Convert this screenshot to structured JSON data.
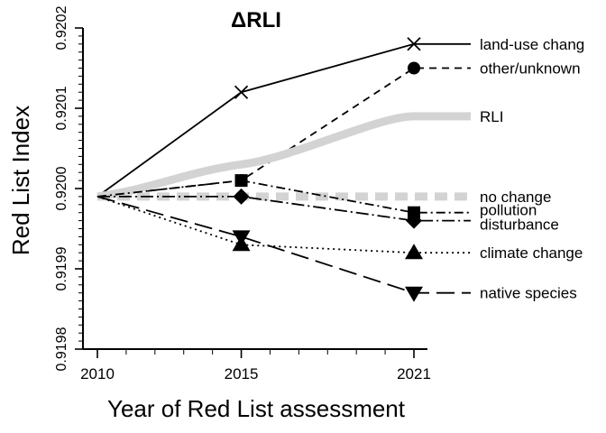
{
  "chart_data": {
    "type": "line",
    "title": "ΔRLI",
    "xlabel": "Year of Red List assessment",
    "ylabel": "Red List Index",
    "x": [
      2010,
      2015,
      2021
    ],
    "xlim": [
      2009.5,
      2022.5
    ],
    "ylim": [
      0.9198,
      0.9202
    ],
    "yticks": [
      0.9198,
      0.9199,
      0.92,
      0.9201,
      0.9202
    ],
    "yticklabels": [
      "0.9198",
      "0.9199",
      "0.9200",
      "0.9201",
      "0.9202"
    ],
    "xticks": [
      2010,
      2015,
      2021
    ],
    "xticklabels": [
      "2010",
      "2015",
      "2021"
    ],
    "grid": false,
    "legend": "direct labels at right end of lines",
    "series": [
      {
        "name": "land-use chang",
        "values": [
          0.91999,
          0.92012,
          0.92018
        ],
        "marker": "x",
        "dash": "solid",
        "color": "#000000"
      },
      {
        "name": "other/unknown",
        "values": [
          0.91999,
          0.92001,
          0.92015
        ],
        "marker": "circle",
        "dash": "dashed",
        "color": "#000000"
      },
      {
        "name": "RLI",
        "values": [
          0.91999,
          0.92003,
          0.92009
        ],
        "marker": "none",
        "dash": "thick",
        "color": "#d3d3d3"
      },
      {
        "name": "no change",
        "values": [
          0.91999,
          0.91999,
          0.91999
        ],
        "marker": "none",
        "dash": "thick-dashed",
        "color": "#d3d3d3"
      },
      {
        "name": "pollution",
        "values": [
          0.91999,
          0.92001,
          0.91997
        ],
        "marker": "square",
        "dash": "dashdot",
        "color": "#000000"
      },
      {
        "name": "disturbance",
        "values": [
          0.91999,
          0.91999,
          0.91996
        ],
        "marker": "diamond",
        "dash": "longdashdot",
        "color": "#000000"
      },
      {
        "name": "climate change",
        "values": [
          0.91999,
          0.91993,
          0.91992
        ],
        "marker": "triangle-up",
        "dash": "dotted",
        "color": "#000000"
      },
      {
        "name": "native species",
        "values": [
          0.91999,
          0.91994,
          0.91987
        ],
        "marker": "triangle-down",
        "dash": "longdash",
        "color": "#000000"
      }
    ]
  }
}
